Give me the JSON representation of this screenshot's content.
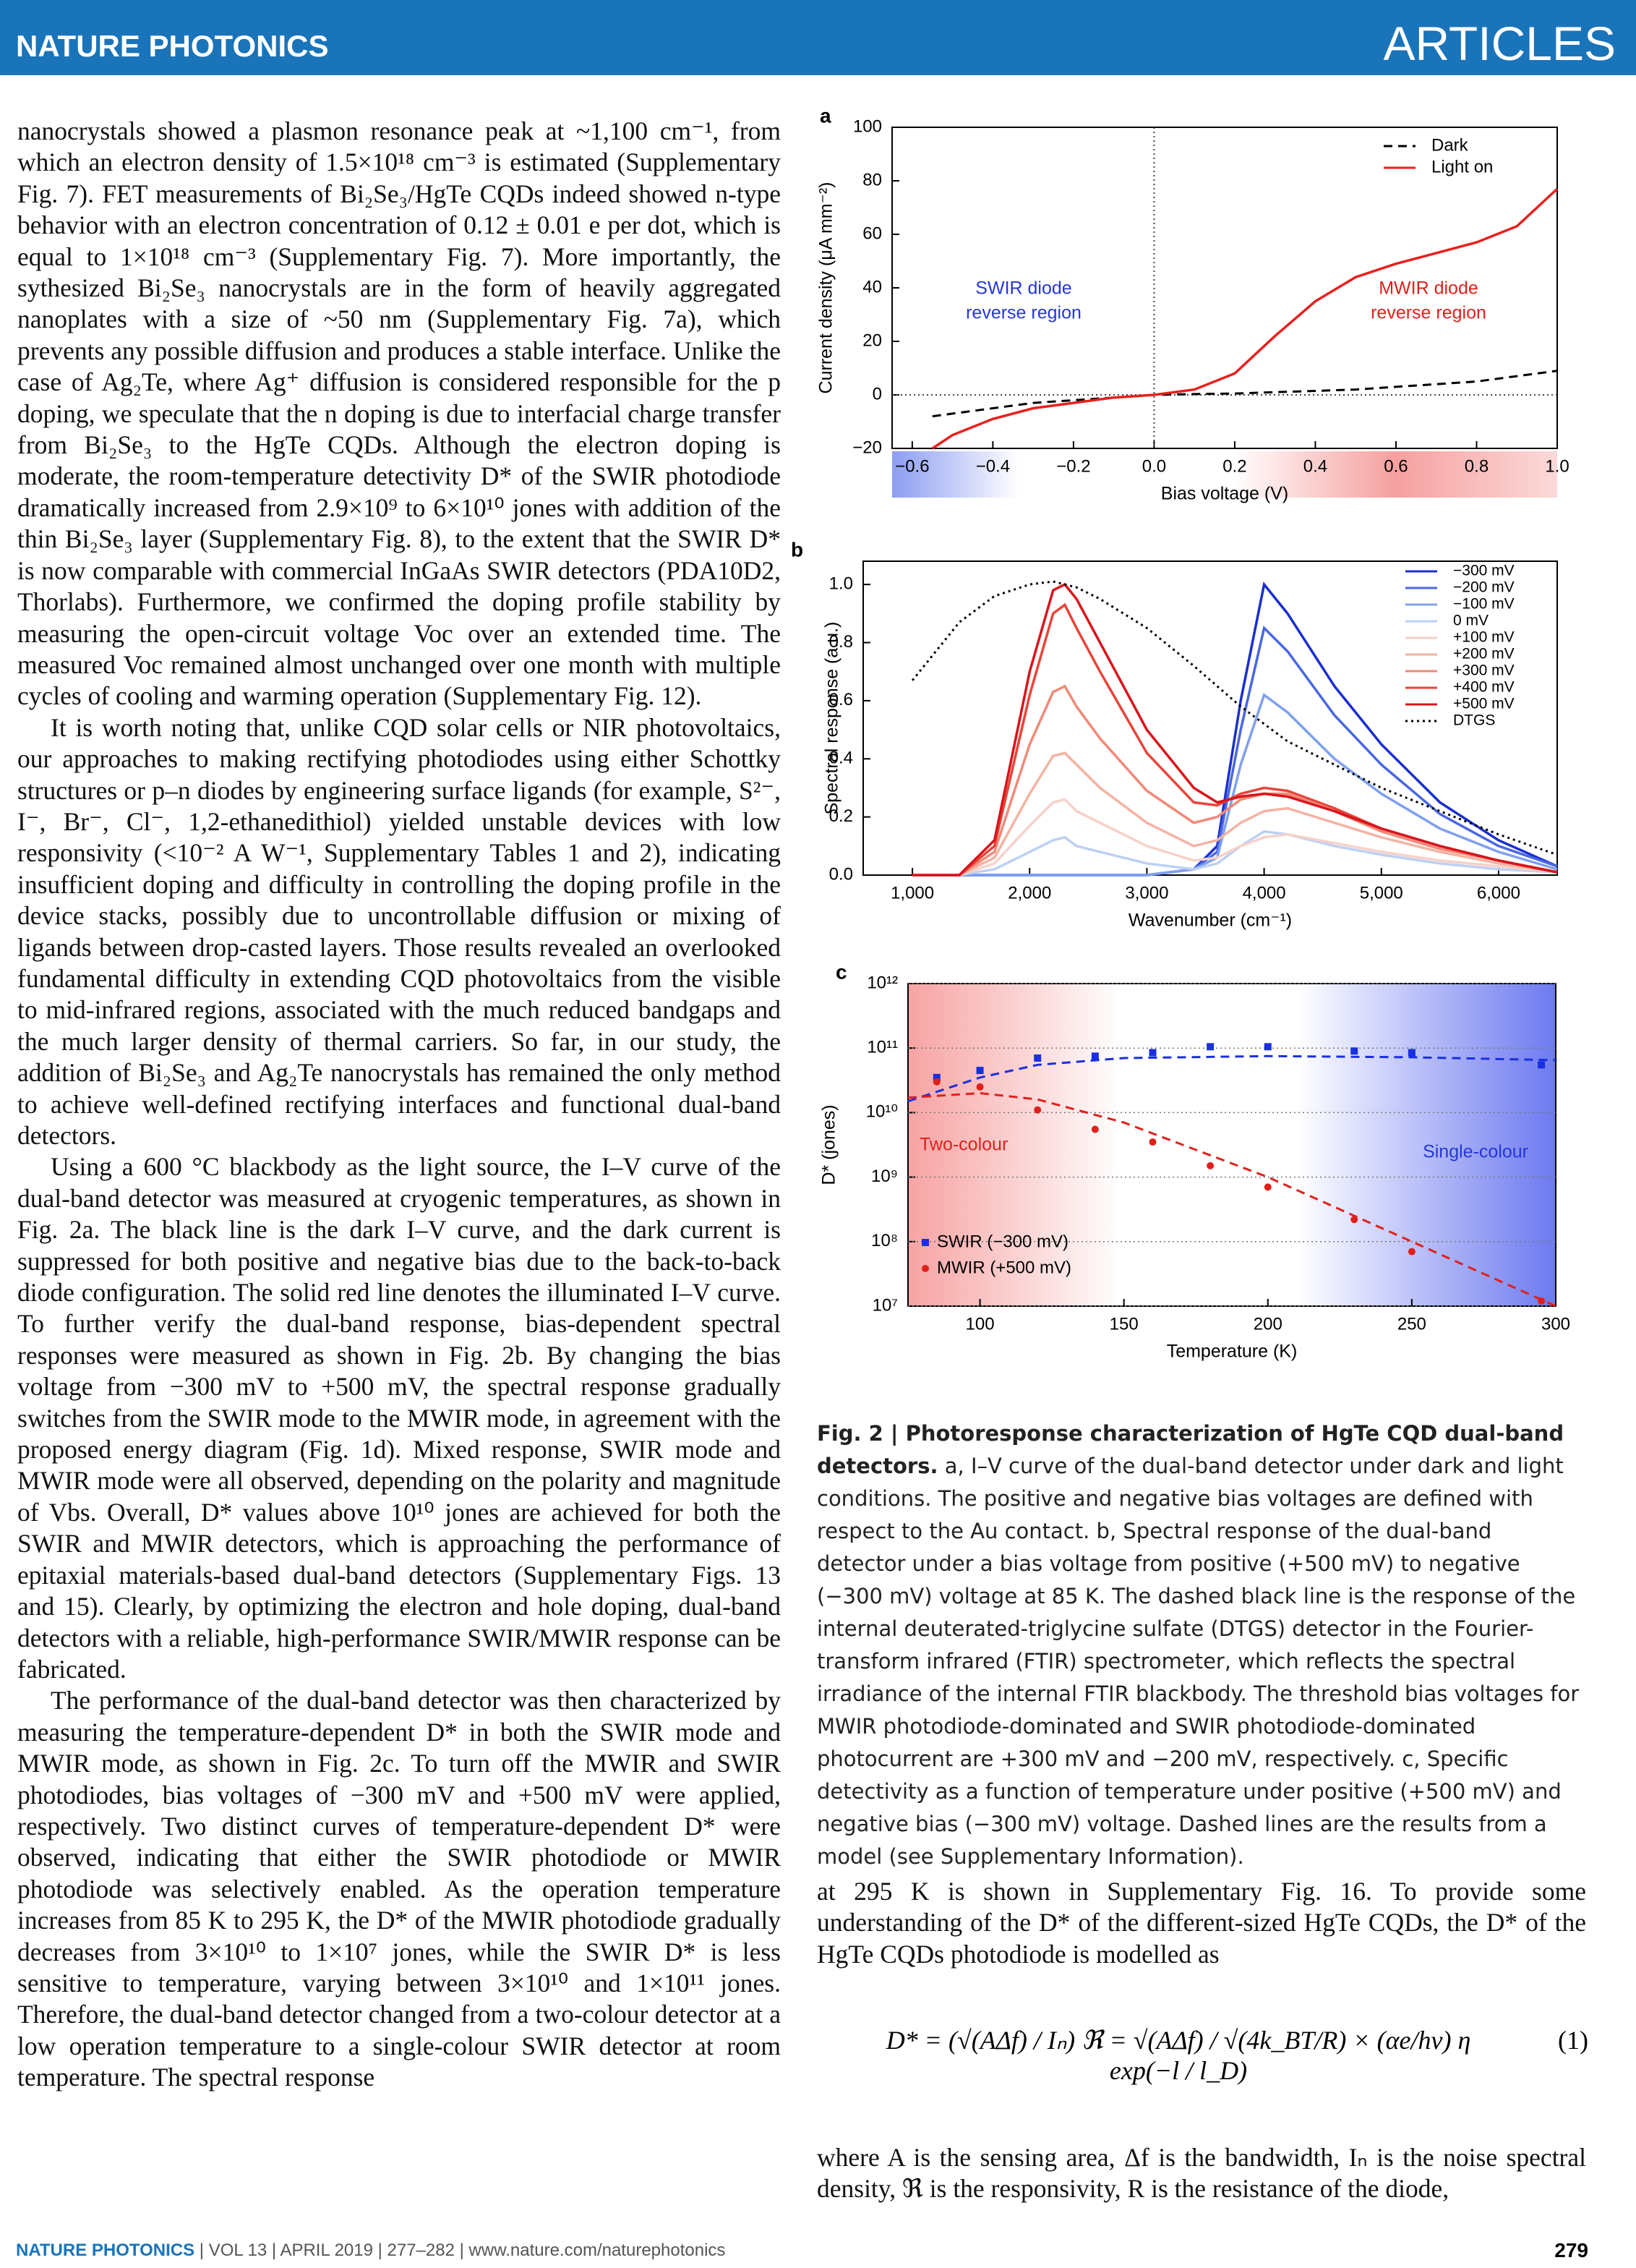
{
  "header": {
    "journal": "NATURE PHOTONICS",
    "section": "ARTICLES"
  },
  "left_column": [
    "nanocrystals showed a plasmon resonance peak at ~1,100 cm⁻¹, from which an electron density of 1.5×10¹⁸ cm⁻³ is estimated (Supplementary Fig. 7). FET measurements of Bi₂Se₃/HgTe CQDs indeed showed n-type behavior with an electron concentration of 0.12 ± 0.01 e per dot, which is equal to 1×10¹⁸ cm⁻³ (Supplementary Fig. 7). More importantly, the sythesized Bi₂Se₃ nanocrystals are in the form of heavily aggregated nanoplates with a size of ~50 nm (Supplementary Fig. 7a), which prevents any possible diffusion and produces a stable interface. Unlike the case of Ag₂Te, where Ag⁺ diffusion is considered responsible for the p doping, we speculate that the n doping is due to interfacial charge transfer from Bi₂Se₃ to the HgTe CQDs. Although the electron doping is moderate, the room-temperature detectivity D* of the SWIR photodiode dramatically increased from 2.9×10⁹ to 6×10¹⁰ jones with addition of the thin Bi₂Se₃ layer (Supplementary Fig. 8), to the extent that the SWIR D* is now comparable with commercial InGaAs SWIR detectors (PDA10D2, Thorlabs). Furthermore, we confirmed the doping profile stability by measuring the open-circuit voltage Voc over an extended time. The measured Voc remained almost unchanged over one month with multiple cycles of cooling and warming operation (Supplementary Fig. 12).",
    "It is worth noting that, unlike CQD solar cells or NIR photovoltaics, our approaches to making rectifying photodiodes using either Schottky structures or p–n diodes by engineering surface ligands (for example, S²⁻, I⁻, Br⁻, Cl⁻, 1,2-ethanedithiol) yielded unstable devices with low responsivity (<10⁻² A W⁻¹, Supplementary Tables 1 and 2), indicating insufficient doping and difficulty in controlling the doping profile in the device stacks, possibly due to uncontrollable diffusion or mixing of ligands between drop-casted layers. Those results revealed an overlooked fundamental difficulty in extending CQD photovoltaics from the visible to mid-infrared regions, associated with the much reduced bandgaps and the much larger density of thermal carriers. So far, in our study, the addition of Bi₂Se₃ and Ag₂Te nanocrystals has remained the only method to achieve well-defined rectifying interfaces and functional dual-band detectors.",
    "Using a 600 °C blackbody as the light source, the I–V curve of the dual-band detector was measured at cryogenic temperatures, as shown in Fig. 2a. The black line is the dark I–V curve, and the dark current is suppressed for both positive and negative bias due to the back-to-back diode configuration. The solid red line denotes the illuminated I–V curve. To further verify the dual-band response, bias-dependent spectral responses were measured as shown in Fig. 2b. By changing the bias voltage from −300 mV to +500 mV, the spectral response gradually switches from the SWIR mode to the MWIR mode, in agreement with the proposed energy diagram (Fig. 1d). Mixed response, SWIR mode and MWIR mode were all observed, depending on the polarity and magnitude of Vbs. Overall, D* values above 10¹⁰ jones are achieved for both the SWIR and MWIR detectors, which is approaching the performance of epitaxial materials-based dual-band detectors (Supplementary Figs. 13 and 15). Clearly, by optimizing the electron and hole doping, dual-band detectors with a reliable, high-performance SWIR/MWIR response can be fabricated.",
    "The performance of the dual-band detector was then characterized by measuring the temperature-dependent D* in both the SWIR mode and MWIR mode, as shown in Fig. 2c. To turn off the MWIR and SWIR photodiodes, bias voltages of −300 mV and +500 mV were applied, respectively. Two distinct curves of temperature-dependent D* were observed, indicating that either the SWIR photodiode or MWIR photodiode was selectively enabled. As the operation temperature increases from 85 K to 295 K, the D* of the MWIR photodiode gradually decreases from 3×10¹⁰ to 1×10⁷ jones, while the SWIR D* is less sensitive to temperature, varying between 3×10¹⁰ and 1×10¹¹ jones. Therefore, the dual-band detector changed from a two-colour detector at a low operation temperature to a single-colour SWIR detector at room temperature. The spectral response"
  ],
  "chart_data": [
    {
      "type": "line",
      "panel": "a",
      "x_label": "Bias voltage (V)",
      "y_label": "Current density (μA mm⁻²)",
      "x": [
        -0.55,
        -0.5,
        -0.4,
        -0.3,
        -0.2,
        -0.1,
        0,
        0.1,
        0.2,
        0.3,
        0.4,
        0.5,
        0.6,
        0.7,
        0.8,
        0.9,
        1.0
      ],
      "series": [
        {
          "name": "Dark",
          "color": "#000000",
          "style": "dashed",
          "values": [
            -8,
            -7,
            -5,
            -3,
            -2,
            -1,
            0,
            0.3,
            0.5,
            1,
            1.5,
            2,
            3,
            4,
            5,
            7,
            9
          ]
        },
        {
          "name": "Light on",
          "color": "#e8201c",
          "style": "solid",
          "values": [
            -20,
            -15,
            -9,
            -5,
            -3,
            -1,
            0,
            2,
            8,
            22,
            35,
            44,
            49,
            53,
            57,
            63,
            77
          ]
        }
      ],
      "xlim": [
        -0.65,
        1.0
      ],
      "xticks": [
        {
          "value": -0.6,
          "label": "−0.6"
        },
        {
          "value": -0.4,
          "label": "−0.4"
        },
        {
          "value": -0.2,
          "label": "−0.2"
        },
        {
          "value": 0,
          "label": "0.0"
        },
        0.2,
        0.4,
        0.6,
        0.8,
        {
          "value": 1,
          "label": "1.0"
        }
      ],
      "ylim": [
        -20,
        100
      ],
      "yticks": [
        {
          "value": -20,
          "label": "−20"
        },
        0,
        20,
        40,
        60,
        80,
        100
      ],
      "zero_lines": true,
      "legend": "upper right",
      "annotations": [
        {
          "lines": [
            "SWIR diode",
            "reverse region"
          ],
          "color": "#2437d8"
        },
        {
          "lines": [
            "MWIR diode",
            "reverse region"
          ],
          "color": "#e0201b"
        }
      ]
    },
    {
      "type": "line",
      "panel": "b",
      "x_label": "Wavenumber (cm⁻¹)",
      "y_label": "Spectral response (a.u.)",
      "x": [
        1000,
        1400,
        1700,
        2000,
        2200,
        2300,
        2400,
        2600,
        3000,
        3400,
        3600,
        3800,
        4000,
        4200,
        4600,
        5000,
        5500,
        6000,
        6500
      ],
      "series": [
        {
          "name": "−300 mV",
          "color": "#1a2fcf",
          "style": "solid",
          "values": [
            0,
            0,
            0,
            0,
            0,
            0,
            0,
            0,
            0,
            0.02,
            0.1,
            0.6,
            1.0,
            0.9,
            0.65,
            0.45,
            0.25,
            0.12,
            0.03
          ]
        },
        {
          "name": "−200 mV",
          "color": "#4a67e0",
          "style": "solid",
          "values": [
            0,
            0,
            0,
            0,
            0,
            0,
            0,
            0,
            0,
            0.02,
            0.08,
            0.5,
            0.85,
            0.77,
            0.55,
            0.38,
            0.21,
            0.1,
            0.03
          ]
        },
        {
          "name": "−100 mV",
          "color": "#7fa0ee",
          "style": "solid",
          "values": [
            0,
            0,
            0,
            0,
            0,
            0,
            0,
            0,
            0,
            0.02,
            0.06,
            0.38,
            0.62,
            0.56,
            0.4,
            0.28,
            0.16,
            0.08,
            0.02
          ]
        },
        {
          "name": "0 mV",
          "color": "#bcd0f5",
          "style": "solid",
          "values": [
            0,
            0,
            0.02,
            0.08,
            0.12,
            0.13,
            0.1,
            0.08,
            0.04,
            0.02,
            0.04,
            0.1,
            0.15,
            0.14,
            0.1,
            0.07,
            0.04,
            0.02,
            0.01
          ]
        },
        {
          "name": "+100 mV",
          "color": "#f6d1c8",
          "style": "solid",
          "values": [
            0,
            0,
            0.04,
            0.17,
            0.25,
            0.26,
            0.22,
            0.18,
            0.1,
            0.05,
            0.06,
            0.1,
            0.13,
            0.14,
            0.11,
            0.08,
            0.05,
            0.03,
            0.01
          ]
        },
        {
          "name": "+200 mV",
          "color": "#f4b3a2",
          "style": "solid",
          "values": [
            0,
            0,
            0.06,
            0.28,
            0.41,
            0.42,
            0.38,
            0.3,
            0.18,
            0.1,
            0.12,
            0.18,
            0.22,
            0.23,
            0.18,
            0.13,
            0.08,
            0.04,
            0.01
          ]
        },
        {
          "name": "+300 mV",
          "color": "#f08a78",
          "style": "solid",
          "values": [
            0,
            0,
            0.08,
            0.45,
            0.63,
            0.65,
            0.58,
            0.47,
            0.29,
            0.18,
            0.2,
            0.26,
            0.28,
            0.28,
            0.22,
            0.15,
            0.09,
            0.05,
            0.01
          ]
        },
        {
          "name": "+400 mV",
          "color": "#e8453a",
          "style": "solid",
          "values": [
            0,
            0,
            0.1,
            0.62,
            0.9,
            0.93,
            0.85,
            0.7,
            0.42,
            0.25,
            0.24,
            0.28,
            0.3,
            0.29,
            0.23,
            0.16,
            0.1,
            0.05,
            0.01
          ]
        },
        {
          "name": "+500 mV",
          "color": "#d9151c",
          "style": "solid",
          "values": [
            0,
            0,
            0.12,
            0.7,
            0.98,
            1.0,
            0.95,
            0.8,
            0.5,
            0.3,
            0.25,
            0.27,
            0.28,
            0.27,
            0.22,
            0.16,
            0.1,
            0.05,
            0.01
          ]
        },
        {
          "name": "DTGS",
          "color": "#000000",
          "style": "dotted",
          "values": [
            0.67,
            0.87,
            0.96,
            1.0,
            1.01,
            1.0,
            0.99,
            0.95,
            0.85,
            0.72,
            0.65,
            0.58,
            0.52,
            0.46,
            0.38,
            0.3,
            0.22,
            0.14,
            0.07
          ]
        }
      ],
      "xlim": [
        580,
        6500
      ],
      "xticks": [
        {
          "value": 1000,
          "label": "1,000"
        },
        {
          "value": 2000,
          "label": "2,000"
        },
        {
          "value": 3000,
          "label": "3,000"
        },
        {
          "value": 4000,
          "label": "4,000"
        },
        {
          "value": 5000,
          "label": "5,000"
        },
        {
          "value": 6000,
          "label": "6,000"
        }
      ],
      "ylim": [
        0,
        1.08
      ],
      "yticks": [
        {
          "value": 0,
          "label": "0.0"
        },
        0.2,
        0.4,
        0.6,
        0.8,
        {
          "value": 1,
          "label": "1.0"
        }
      ],
      "legend": "upper right"
    },
    {
      "type": "scatter",
      "panel": "c",
      "x_label": "Temperature (K)",
      "y_label": "D* (jones)",
      "series": [
        {
          "name": "SWIR (−300 mV)",
          "color": "#1a2fe0",
          "marker": "square",
          "x": [
            85,
            100,
            120,
            140,
            160,
            180,
            200,
            230,
            250,
            295
          ],
          "values": [
            35000000000.0,
            45000000000.0,
            70000000000.0,
            75000000000.0,
            85000000000.0,
            105000000000.0,
            105000000000.0,
            90000000000.0,
            85000000000.0,
            55000000000.0
          ]
        },
        {
          "name": "MWIR (+500 mV)",
          "color": "#e0201b",
          "marker": "circle",
          "x": [
            85,
            100,
            120,
            140,
            160,
            180,
            200,
            230,
            250,
            295
          ],
          "values": [
            30000000000.0,
            25000000000.0,
            11000000000.0,
            5500000000.0,
            3500000000.0,
            1500000000.0,
            700000000.0,
            220000000.0,
            70000000.0,
            12000000.0
          ]
        },
        {
          "color": "#1a2fe0",
          "style": "dashed",
          "x": [
            75,
            100,
            120,
            150,
            200,
            250,
            300
          ],
          "values": [
            15000000000.0,
            35000000000.0,
            55000000000.0,
            70000000000.0,
            75000000000.0,
            72000000000.0,
            65000000000.0
          ]
        },
        {
          "color": "#e0201b",
          "style": "dashed",
          "x": [
            75,
            100,
            120,
            150,
            200,
            250,
            300
          ],
          "values": [
            17000000000.0,
            20000000000.0,
            16000000000.0,
            7000000000.0,
            1000000000.0,
            100000000.0,
            10000000.0
          ]
        }
      ],
      "xlim": [
        75,
        300
      ],
      "xticks": [
        100,
        150,
        200,
        250,
        300
      ],
      "yscale": "log",
      "ylim": [
        10000000.0,
        1000000000000.0
      ],
      "yticks": [
        {
          "value": 10000000.0,
          "label": "10⁷"
        },
        {
          "value": 100000000.0,
          "label": "10⁸"
        },
        {
          "value": 1000000000.0,
          "label": "10⁹"
        },
        {
          "value": 10000000000.0,
          "label": "10¹⁰"
        },
        {
          "value": 100000000000.0,
          "label": "10¹¹"
        },
        {
          "value": 1000000000000.0,
          "label": "10¹²"
        }
      ],
      "grid": true,
      "legend": "lower left",
      "annotations": [
        {
          "lines": [
            "Two-colour"
          ],
          "color": "#e0201b"
        },
        {
          "lines": [
            "Single-colour"
          ],
          "color": "#2437d8"
        }
      ]
    }
  ],
  "caption": {
    "title": "Fig. 2 | Photoresponse characterization of HgTe CQD dual-band detectors.",
    "text": "a, I–V curve of the dual-band detector under dark and light conditions. The positive and negative bias voltages are defined with respect to the Au contact. b, Spectral response of the dual-band detector under a bias voltage from positive (+500 mV) to negative (−300 mV) voltage at 85 K. The dashed black line is the response of the internal deuterated-triglycine sulfate (DTGS) detector in the Fourier-transform infrared (FTIR) spectrometer, which reflects the spectral irradiance of the internal FTIR blackbody. The threshold bias voltages for MWIR photodiode-dominated and SWIR photodiode-dominated photocurrent are +300 mV and −200 mV, respectively. c, Specific detectivity as a function of temperature under positive (+500 mV) and negative bias (−300 mV) voltage. Dashed lines are the results from a model (see Supplementary Information)."
  },
  "right_column": {
    "before_equation": "at 295 K is shown in Supplementary Fig. 16. To provide some understanding of the D* of the different-sized HgTe CQDs, the D* of the HgTe CQDs photodiode is modelled as",
    "equation": "D* = (√(AΔf) / Iₙ) ℜ = √(AΔf) / √(4k_BT/R) × (αe/hν) η exp(−l / l_D)",
    "equation_number": "(1)",
    "after_equation": "where A is the sensing area, Δf is the bandwidth, Iₙ is the noise spectral density, ℜ is the responsivity, R is the resistance of the diode,"
  },
  "footer": {
    "journal": "NATURE PHOTONICS",
    "info": "| VOL 13 | APRIL 2019 | 277–282 | www.nature.com/naturephotonics",
    "page": "279"
  }
}
